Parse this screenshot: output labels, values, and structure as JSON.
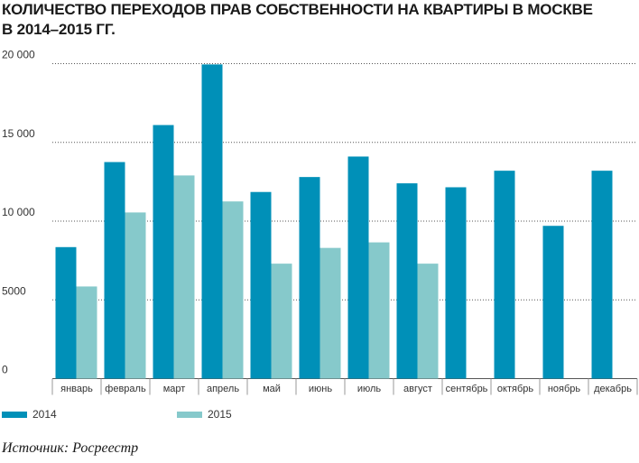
{
  "header": {
    "title_line1": "КОЛИЧЕСТВО ПЕРЕХОДОВ ПРАВ СОБСТВЕННОСТИ НА КВАРТИРЫ В МОСКВЕ",
    "title_line2": "В 2014–2015 ГГ."
  },
  "footer": {
    "source": "Источник: Росреестр"
  },
  "colors": {
    "series_2014": "#0090b8",
    "series_2015": "#86c9cb",
    "grid": "#555555",
    "axis_text": "#333333"
  },
  "chart_data": {
    "type": "bar",
    "title": "КОЛИЧЕСТВО ПЕРЕХОДОВ ПРАВ СОБСТВЕННОСТИ НА КВАРТИРЫ В МОСКВЕ В 2014–2015 ГГ.",
    "categories": [
      "январь",
      "февраль",
      "март",
      "апрель",
      "май",
      "июнь",
      "июль",
      "август",
      "сентябрь",
      "октябрь",
      "ноябрь",
      "декабрь"
    ],
    "series": [
      {
        "name": "2014",
        "values": [
          8350,
          13750,
          16100,
          19950,
          11850,
          12800,
          14100,
          12400,
          12150,
          13200,
          9700,
          13200
        ]
      },
      {
        "name": "2015",
        "values": [
          5850,
          10550,
          12900,
          11250,
          7300,
          8300,
          8650,
          7300,
          null,
          null,
          null,
          null
        ]
      }
    ],
    "y_ticks": [
      "0",
      "5000",
      "10 000",
      "15 000",
      "20 000"
    ],
    "y_tick_values": [
      0,
      5000,
      10000,
      15000,
      20000
    ],
    "ylim": [
      0,
      20000
    ],
    "xlabel": "",
    "ylabel": "",
    "grid": "horizontal dotted",
    "legend_position": "bottom-left"
  }
}
